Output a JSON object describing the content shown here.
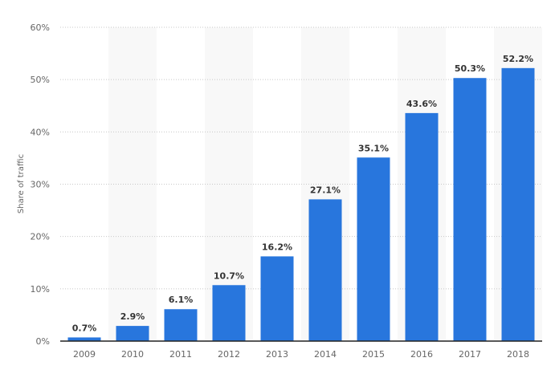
{
  "chart_data": {
    "type": "bar",
    "title": "",
    "xlabel": "",
    "ylabel": "Share of traffic",
    "categories": [
      "2009",
      "2010",
      "2011",
      "2012",
      "2013",
      "2014",
      "2015",
      "2016",
      "2017",
      "2018"
    ],
    "values": [
      0.7,
      2.9,
      6.1,
      10.7,
      16.2,
      27.1,
      35.1,
      43.6,
      50.3,
      52.2
    ],
    "data_labels": [
      "0.7%",
      "2.9%",
      "6.1%",
      "10.7%",
      "16.2%",
      "27.1%",
      "35.1%",
      "43.6%",
      "50.3%",
      "52.2%"
    ],
    "ylim": [
      0,
      60
    ],
    "yticks": [
      0,
      10,
      20,
      30,
      40,
      50,
      60
    ],
    "ytick_labels": [
      "0%",
      "10%",
      "20%",
      "30%",
      "40%",
      "50%",
      "60%"
    ],
    "grid": true,
    "bar_color": "#2876dd",
    "band_color": "#f8f8f8"
  }
}
